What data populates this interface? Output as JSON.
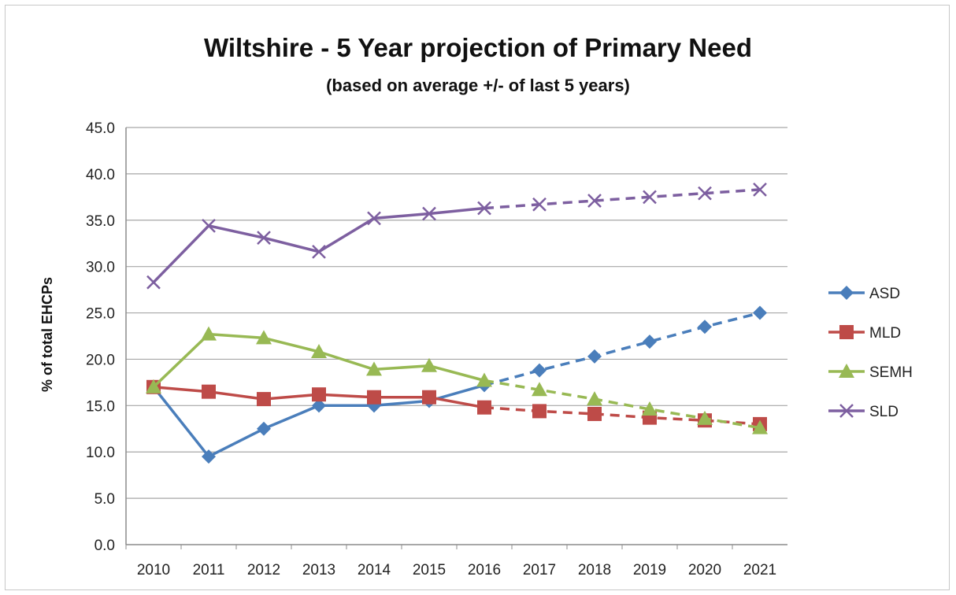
{
  "chart_data": {
    "type": "line",
    "title": "Wiltshire - 5 Year projection of Primary Need",
    "subtitle": "(based on average +/-  of last 5 years)",
    "ylabel": "% of total EHCPs",
    "xlabel": "",
    "ylim": [
      0,
      45
    ],
    "yticks": [
      "0.0",
      "5.0",
      "10.0",
      "15.0",
      "20.0",
      "25.0",
      "30.0",
      "35.0",
      "40.0",
      "45.0"
    ],
    "categories": [
      "2010",
      "2011",
      "2012",
      "2013",
      "2014",
      "2015",
      "2016",
      "2017",
      "2018",
      "2019",
      "2020",
      "2021"
    ],
    "grid": true,
    "legend_position": "right",
    "projection_starts_at": "2016",
    "series": [
      {
        "name": "ASD",
        "color": "#4a7ebb",
        "marker": "diamond",
        "values": [
          17.0,
          9.5,
          12.5,
          15.0,
          15.0,
          15.5,
          17.2,
          18.8,
          20.3,
          21.9,
          23.5,
          25.0
        ]
      },
      {
        "name": "MLD",
        "color": "#be4b48",
        "marker": "square",
        "values": [
          17.0,
          16.5,
          15.7,
          16.2,
          15.9,
          15.9,
          14.8,
          14.4,
          14.1,
          13.7,
          13.4,
          13.0
        ]
      },
      {
        "name": "SEMH",
        "color": "#98b954",
        "marker": "triangle",
        "values": [
          17.0,
          22.7,
          22.3,
          20.8,
          18.9,
          19.3,
          17.7,
          16.7,
          15.7,
          14.6,
          13.6,
          12.6
        ]
      },
      {
        "name": "SLD",
        "color": "#7d5fa0",
        "marker": "x",
        "values": [
          28.3,
          34.4,
          33.1,
          31.6,
          35.2,
          35.7,
          36.3,
          36.7,
          37.1,
          37.5,
          37.9,
          38.3
        ]
      }
    ]
  }
}
